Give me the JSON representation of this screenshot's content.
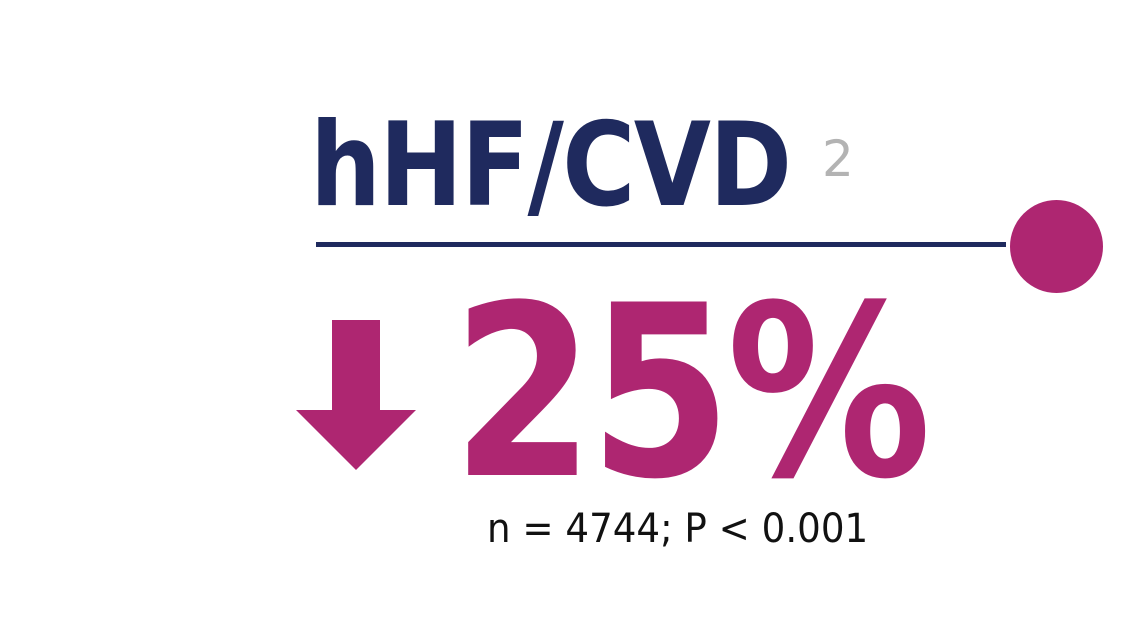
{
  "heading": {
    "text": "hHF/CVD",
    "superscript": "2"
  },
  "result": {
    "direction_icon": "arrow-down-icon",
    "value": "25%"
  },
  "stats": {
    "text": "n = 4744; P < 0.001"
  },
  "colors": {
    "navy": "#1f2a5e",
    "magenta": "#ae2671",
    "superscript_gray": "#b3b3b3"
  }
}
